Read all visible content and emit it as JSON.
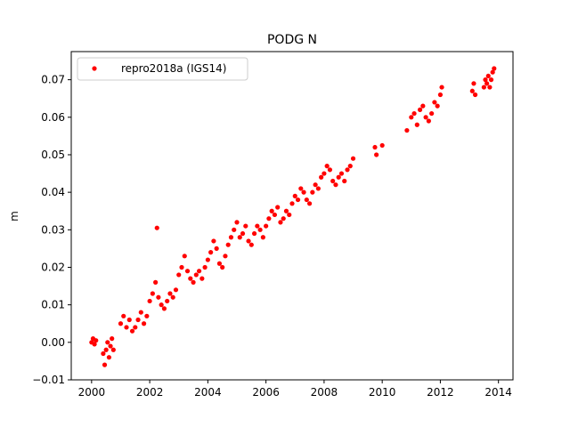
{
  "chart_data": {
    "type": "scatter",
    "title": "PODG N",
    "xlabel": "",
    "ylabel": "m",
    "xlim": [
      1999.3,
      2014.5
    ],
    "ylim": [
      -0.01,
      0.0775
    ],
    "xticks": [
      2000,
      2002,
      2004,
      2006,
      2008,
      2010,
      2012,
      2014
    ],
    "xtick_labels": [
      "2000",
      "2002",
      "2004",
      "2006",
      "2008",
      "2010",
      "2012",
      "2014"
    ],
    "yticks": [
      -0.01,
      0.0,
      0.01,
      0.02,
      0.03,
      0.04,
      0.05,
      0.06,
      0.07
    ],
    "ytick_labels": [
      "−0.01",
      "0.00",
      "0.01",
      "0.02",
      "0.03",
      "0.04",
      "0.05",
      "0.06",
      "0.07"
    ],
    "grid": false,
    "legend": {
      "position": "top-left"
    },
    "series": [
      {
        "name": "repro2018a (IGS14)",
        "color": "#ff0000",
        "marker": "circle",
        "x": [
          2000.0,
          2000.05,
          2000.1,
          2000.15,
          2000.4,
          2000.45,
          2000.5,
          2000.55,
          2000.6,
          2000.65,
          2000.7,
          2000.75,
          2001.0,
          2001.1,
          2001.2,
          2001.3,
          2001.4,
          2001.5,
          2001.6,
          2001.7,
          2001.8,
          2001.9,
          2002.0,
          2002.1,
          2002.2,
          2002.25,
          2002.3,
          2002.4,
          2002.5,
          2002.6,
          2002.7,
          2002.8,
          2002.9,
          2003.0,
          2003.1,
          2003.2,
          2003.3,
          2003.4,
          2003.5,
          2003.6,
          2003.7,
          2003.8,
          2003.9,
          2004.0,
          2004.1,
          2004.2,
          2004.3,
          2004.4,
          2004.5,
          2004.6,
          2004.7,
          2004.8,
          2004.9,
          2005.0,
          2005.1,
          2005.2,
          2005.3,
          2005.4,
          2005.5,
          2005.6,
          2005.7,
          2005.8,
          2005.9,
          2006.0,
          2006.1,
          2006.2,
          2006.3,
          2006.4,
          2006.5,
          2006.6,
          2006.7,
          2006.8,
          2006.9,
          2007.0,
          2007.1,
          2007.2,
          2007.3,
          2007.4,
          2007.5,
          2007.6,
          2007.7,
          2007.8,
          2007.9,
          2008.0,
          2008.1,
          2008.2,
          2008.3,
          2008.4,
          2008.5,
          2008.6,
          2008.7,
          2008.8,
          2008.9,
          2009.0,
          2009.75,
          2009.8,
          2010.0,
          2010.85,
          2011.0,
          2011.1,
          2011.2,
          2011.3,
          2011.4,
          2011.5,
          2011.6,
          2011.7,
          2011.8,
          2011.9,
          2012.0,
          2012.05,
          2013.1,
          2013.15,
          2013.2,
          2013.5,
          2013.55,
          2013.6,
          2013.65,
          2013.7,
          2013.75,
          2013.8,
          2013.85
        ],
        "y": [
          0.0,
          0.001,
          -0.0005,
          0.0005,
          -0.003,
          -0.006,
          -0.002,
          0.0,
          -0.004,
          -0.001,
          0.001,
          -0.002,
          0.005,
          0.007,
          0.004,
          0.006,
          0.003,
          0.004,
          0.006,
          0.008,
          0.005,
          0.007,
          0.011,
          0.013,
          0.016,
          0.0305,
          0.012,
          0.01,
          0.009,
          0.011,
          0.013,
          0.012,
          0.014,
          0.018,
          0.02,
          0.023,
          0.019,
          0.017,
          0.016,
          0.018,
          0.019,
          0.017,
          0.02,
          0.022,
          0.024,
          0.027,
          0.025,
          0.021,
          0.02,
          0.023,
          0.026,
          0.028,
          0.03,
          0.032,
          0.028,
          0.029,
          0.031,
          0.027,
          0.026,
          0.029,
          0.031,
          0.03,
          0.028,
          0.031,
          0.033,
          0.035,
          0.034,
          0.036,
          0.032,
          0.033,
          0.035,
          0.034,
          0.037,
          0.039,
          0.038,
          0.041,
          0.04,
          0.038,
          0.037,
          0.04,
          0.042,
          0.041,
          0.044,
          0.045,
          0.047,
          0.046,
          0.043,
          0.042,
          0.044,
          0.045,
          0.043,
          0.046,
          0.047,
          0.049,
          0.052,
          0.05,
          0.0525,
          0.0565,
          0.06,
          0.061,
          0.058,
          0.062,
          0.063,
          0.06,
          0.059,
          0.061,
          0.064,
          0.063,
          0.066,
          0.068,
          0.067,
          0.069,
          0.066,
          0.068,
          0.07,
          0.069,
          0.071,
          0.068,
          0.07,
          0.072,
          0.073
        ]
      }
    ]
  }
}
